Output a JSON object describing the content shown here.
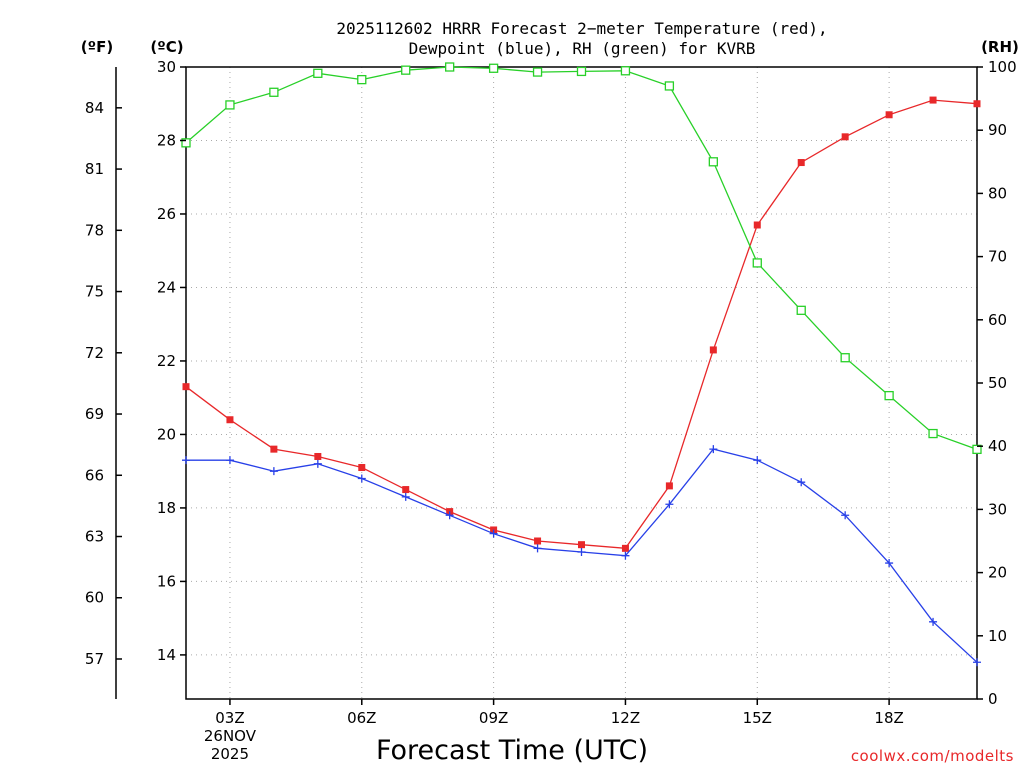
{
  "chart_data": {
    "type": "line",
    "title": [
      "2025112602 HRRR Forecast 2−meter Temperature (red),",
      "Dewpoint (blue), RH (green) for KVRB"
    ],
    "xlabel": "Forecast Time (UTC)",
    "credit": "coolwx.com/modelts",
    "units": {
      "fahrenheit": "(ºF)",
      "celsius": "(ºC)",
      "rh": "(RH)"
    },
    "x": [
      2,
      3,
      4,
      5,
      6,
      7,
      8,
      9,
      10,
      11,
      12,
      13,
      14,
      15,
      16,
      17,
      18,
      19,
      20
    ],
    "xlim": [
      2,
      20
    ],
    "x_ticks": [
      {
        "x": 3,
        "label": "03Z",
        "date": "26NOV",
        "year": "2025"
      },
      {
        "x": 6,
        "label": "06Z"
      },
      {
        "x": 9,
        "label": "09Z"
      },
      {
        "x": 12,
        "label": "12Z"
      },
      {
        "x": 15,
        "label": "15Z"
      },
      {
        "x": 18,
        "label": "18Z"
      }
    ],
    "ylim_c": [
      12.8,
      30
    ],
    "ylim_rh": [
      0,
      100
    ],
    "yticks_c": [
      14,
      16,
      18,
      20,
      22,
      24,
      26,
      28,
      30
    ],
    "yticks_f": [
      57,
      60,
      63,
      66,
      69,
      72,
      75,
      78,
      81,
      84
    ],
    "yticks_rh": [
      0,
      10,
      20,
      30,
      40,
      50,
      60,
      70,
      80,
      90,
      100
    ],
    "series": [
      {
        "name": "Temperature",
        "axis": "celsius",
        "color": "#e8282a",
        "marker": "filled-square",
        "values": [
          21.3,
          20.4,
          19.6,
          19.4,
          19.1,
          18.5,
          17.9,
          17.4,
          17.1,
          17.0,
          16.9,
          18.6,
          22.3,
          25.7,
          27.4,
          28.1,
          28.7,
          29.1,
          29.0
        ]
      },
      {
        "name": "Dewpoint",
        "axis": "celsius",
        "color": "#2840e8",
        "marker": "plus",
        "values": [
          19.3,
          19.3,
          19.0,
          19.2,
          18.8,
          18.3,
          17.8,
          17.3,
          16.9,
          16.8,
          16.7,
          18.1,
          19.6,
          19.3,
          18.7,
          17.8,
          16.5,
          14.9,
          13.8
        ]
      },
      {
        "name": "RH",
        "axis": "rh",
        "color": "#28d028",
        "marker": "open-square",
        "values": [
          88,
          94,
          96,
          99,
          98,
          99.5,
          100,
          99.8,
          99.2,
          99.3,
          99.4,
          97,
          85,
          69,
          61.5,
          54,
          48,
          42,
          39.5
        ]
      }
    ]
  }
}
